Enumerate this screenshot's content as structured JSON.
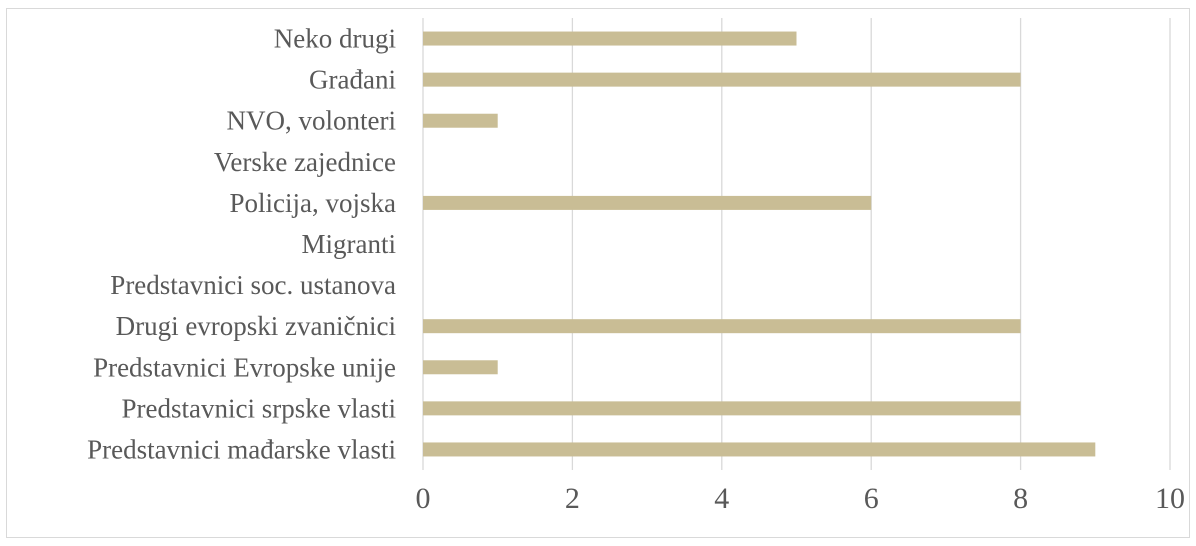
{
  "chart_data": {
    "type": "bar",
    "orientation": "horizontal",
    "categories": [
      "Neko drugi",
      "Građani",
      "NVO, volonteri",
      "Verske zajednice",
      "Policija, vojska",
      "Migranti",
      "Predstavnici soc. ustanova",
      "Drugi evropski zvaničnici",
      "Predstavnici Evropske unije",
      "Predstavnici srpske vlasti",
      "Predstavnici mađarske vlasti"
    ],
    "values": [
      5,
      8,
      1,
      0,
      6,
      0,
      0,
      8,
      1,
      8,
      9
    ],
    "xlim": [
      0,
      10
    ],
    "xticks": [
      "0",
      "2",
      "4",
      "6",
      "8",
      "10"
    ],
    "grid": "vertical",
    "legend": "none",
    "colors": {
      "bar": "#c9bd95",
      "grid": "#d9d9d9",
      "text": "#595959"
    }
  }
}
